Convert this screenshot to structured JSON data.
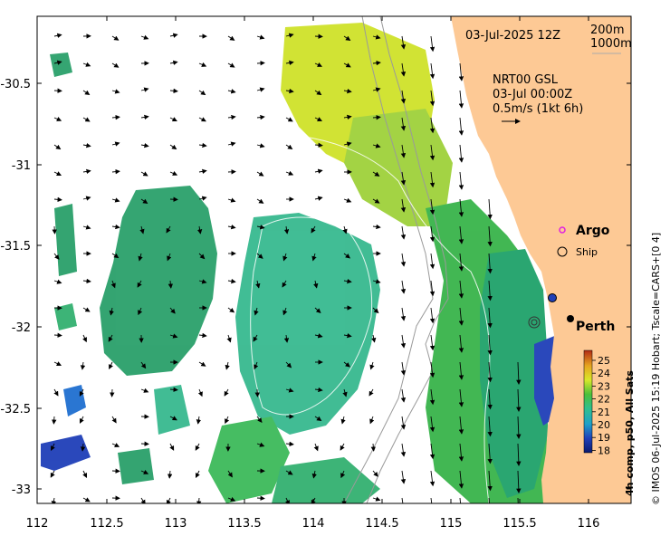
{
  "map": {
    "date_label": "03-Jul-2025 12Z",
    "depth_labels": [
      "200m",
      "1000m"
    ],
    "current_source": "NRT00 GSL",
    "current_time": "03-Jul 00:00Z",
    "current_scale": "0.5m/s (1kt 6h)",
    "legend_argo": "Argo",
    "legend_ship": "Ship",
    "place_perth": "Perth",
    "colorbar_title": "4h comp, p50, All Sats",
    "colorbar_ticks": [
      "25",
      "24",
      "23",
      "22",
      "21",
      "20",
      "19",
      "18"
    ],
    "credit": "© IMOS 06-Jul-2025 15:19 Hobart; Tscale=CARS+[0 4]",
    "x_ticks": [
      "112",
      "112.5",
      "113",
      "113.5",
      "114",
      "114.5",
      "115",
      "115.5",
      "116"
    ],
    "y_ticks": [
      "-30.5",
      "-31",
      "-31.5",
      "-32",
      "-32.5",
      "-33"
    ],
    "colors": {
      "land": "#fdc995",
      "sst_cool": "#2aa06a",
      "sst_mid": "#37b98f",
      "sst_warm": "#cfe22a",
      "sst_cold": "#1f3fb8",
      "arrow": "#000000"
    }
  }
}
